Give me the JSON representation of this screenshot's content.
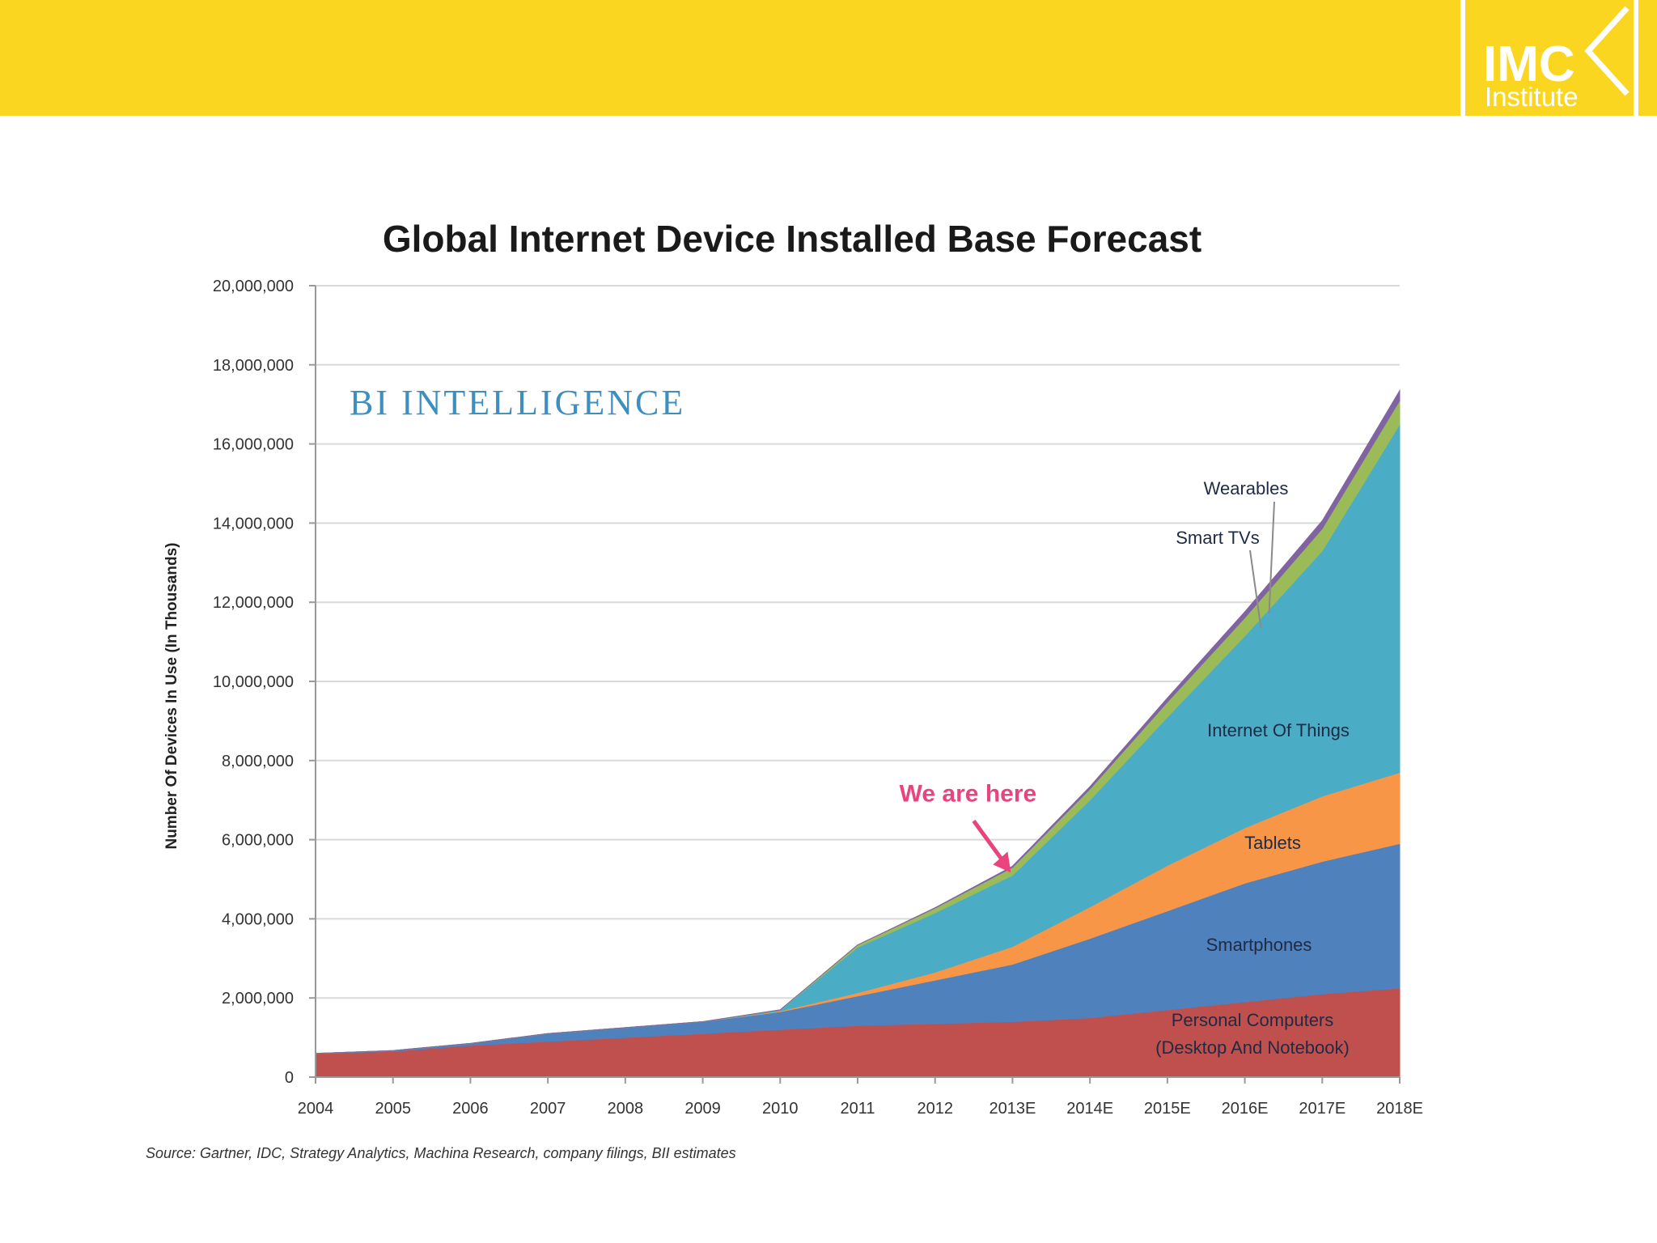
{
  "slide": {
    "colors": {
      "banner": "#fbd621",
      "background": "#ffffff"
    },
    "logo": {
      "main": "IMC",
      "sub": "Institute"
    }
  },
  "chart_data": {
    "type": "area",
    "stacked": true,
    "title": "Global Internet Device Installed Base Forecast",
    "ylabel": "Number Of Devices In Use (In Thousands)",
    "xlabel": "",
    "ylim": [
      0,
      20000000
    ],
    "yticks": [
      0,
      2000000,
      4000000,
      6000000,
      8000000,
      10000000,
      12000000,
      14000000,
      16000000,
      18000000,
      20000000
    ],
    "ytick_labels": [
      "0",
      "2,000,000",
      "4,000,000",
      "6,000,000",
      "8,000,000",
      "10,000,000",
      "12,000,000",
      "14,000,000",
      "16,000,000",
      "18,000,000",
      "20,000,000"
    ],
    "categories": [
      "2004",
      "2005",
      "2006",
      "2007",
      "2008",
      "2009",
      "2010",
      "2011",
      "2012",
      "2013E",
      "2014E",
      "2015E",
      "2016E",
      "2017E",
      "2018E"
    ],
    "grid": true,
    "watermark": "BI INTELLIGENCE",
    "source": "Source: Gartner, IDC, Strategy Analytics, Machina Research, company filings, BII estimates",
    "series": [
      {
        "name": "Personal Computers (Desktop And Notebook)",
        "label_lines": [
          "Personal Computers",
          "(Desktop And Notebook)"
        ],
        "color": "#c0504d",
        "values": [
          600000,
          650000,
          800000,
          900000,
          1000000,
          1100000,
          1200000,
          1300000,
          1350000,
          1400000,
          1500000,
          1700000,
          1900000,
          2100000,
          2250000
        ]
      },
      {
        "name": "Smartphones",
        "label_lines": [
          "Smartphones"
        ],
        "color": "#4f81bd",
        "values": [
          0,
          20000,
          50000,
          200000,
          250000,
          300000,
          450000,
          750000,
          1100000,
          1450000,
          2000000,
          2500000,
          3000000,
          3350000,
          3650000
        ]
      },
      {
        "name": "Tablets",
        "label_lines": [
          "Tablets"
        ],
        "color": "#f79646",
        "values": [
          0,
          0,
          0,
          0,
          0,
          0,
          20000,
          80000,
          200000,
          450000,
          800000,
          1150000,
          1400000,
          1650000,
          1800000
        ]
      },
      {
        "name": "Internet Of Things",
        "label_lines": [
          "Internet Of Things"
        ],
        "color": "#4bacc6",
        "values": [
          0,
          0,
          0,
          0,
          0,
          0,
          30000,
          1150000,
          1500000,
          1800000,
          2700000,
          3750000,
          4850000,
          6200000,
          8800000
        ]
      },
      {
        "name": "Smart TVs",
        "label_lines": [
          "Smart TVs"
        ],
        "color": "#9bbb59",
        "values": [
          0,
          0,
          0,
          0,
          0,
          0,
          0,
          60000,
          120000,
          200000,
          280000,
          380000,
          460000,
          560000,
          600000
        ]
      },
      {
        "name": "Wearables",
        "label_lines": [
          "Wearables"
        ],
        "color": "#8064a2",
        "values": [
          0,
          0,
          0,
          0,
          0,
          0,
          0,
          0,
          10000,
          30000,
          60000,
          100000,
          150000,
          200000,
          250000
        ]
      }
    ],
    "annotations": [
      {
        "text": "We are here",
        "color": "#e8457e",
        "at_category": "2013E"
      }
    ]
  }
}
